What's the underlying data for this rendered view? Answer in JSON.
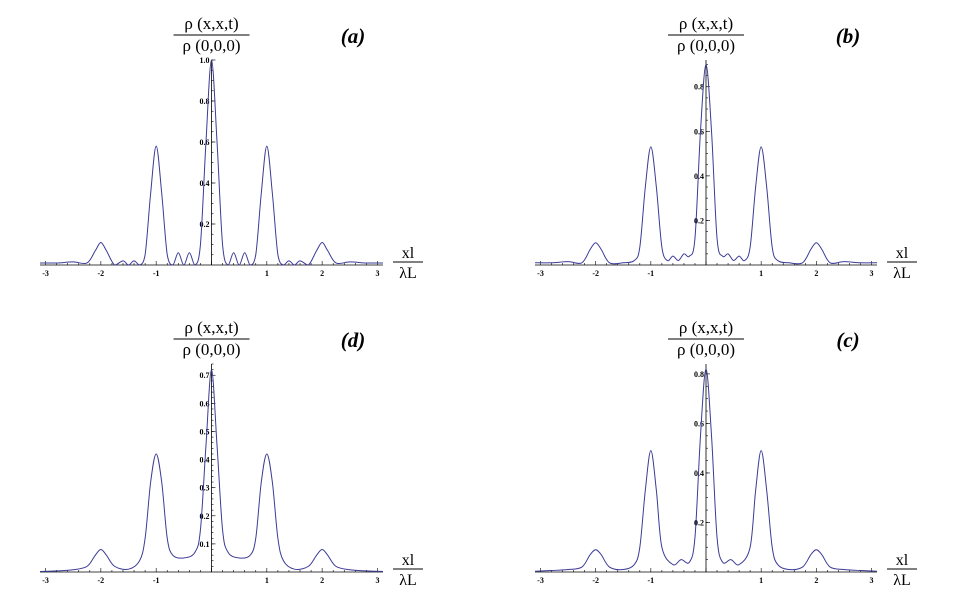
{
  "chart_data": [
    {
      "type": "line",
      "panel_label": "(a)",
      "ylabel_numerator": "ρ (x,x,t)",
      "ylabel_denominator": "ρ (0,0,0)",
      "xlabel_numerator": "xl",
      "xlabel_denominator": "λL",
      "xlim": [
        -3.1,
        3.1
      ],
      "ylim": [
        0,
        1.0
      ],
      "xticks": [
        "-3",
        "-2",
        "-1",
        "0",
        "1",
        "2",
        "3"
      ],
      "yticks": [
        "0.2",
        "0.4",
        "0.6",
        "0.8",
        "1.0"
      ],
      "series": [
        {
          "x": [
            -3.1,
            -2.8,
            -2.5,
            -2.25,
            -2.1,
            -2.0,
            -1.9,
            -1.75,
            -1.6,
            -1.5,
            -1.4,
            -1.3,
            -1.2,
            -1.1,
            -1.0,
            -0.9,
            -0.8,
            -0.7,
            -0.6,
            -0.5,
            -0.4,
            -0.3,
            -0.2,
            -0.1,
            0,
            0.1,
            0.2,
            0.3,
            0.4,
            0.5,
            0.6,
            0.7,
            0.8,
            0.9,
            1.0,
            1.1,
            1.2,
            1.3,
            1.4,
            1.5,
            1.6,
            1.75,
            1.9,
            2.0,
            2.1,
            2.25,
            2.5,
            2.8,
            3.1
          ],
          "y": [
            0.01,
            0.01,
            0.015,
            0.01,
            0.07,
            0.11,
            0.07,
            0.0,
            0.02,
            0.0,
            0.02,
            0.0,
            0.05,
            0.35,
            0.58,
            0.35,
            0.05,
            0.0,
            0.06,
            0.0,
            0.06,
            0.0,
            0.1,
            0.6,
            1.0,
            0.6,
            0.1,
            0.0,
            0.06,
            0.0,
            0.06,
            0.0,
            0.05,
            0.35,
            0.58,
            0.35,
            0.05,
            0.0,
            0.02,
            0.0,
            0.02,
            0.0,
            0.07,
            0.11,
            0.07,
            0.01,
            0.015,
            0.01,
            0.01
          ]
        }
      ]
    },
    {
      "type": "line",
      "panel_label": "(b)",
      "ylabel_numerator": "ρ (x,x,t)",
      "ylabel_denominator": "ρ (0,0,0)",
      "xlabel_numerator": "xl",
      "xlabel_denominator": "λL",
      "xlim": [
        -3.1,
        3.1
      ],
      "ylim": [
        0,
        0.92
      ],
      "xticks": [
        "-3",
        "-2",
        "-1",
        "0",
        "1",
        "2",
        "3"
      ],
      "yticks": [
        "0.2",
        "0.4",
        "0.6",
        "0.8"
      ],
      "series": [
        {
          "x": [
            -3.1,
            -2.8,
            -2.5,
            -2.25,
            -2.1,
            -2.0,
            -1.9,
            -1.75,
            -1.5,
            -1.3,
            -1.2,
            -1.1,
            -1.0,
            -0.9,
            -0.8,
            -0.7,
            -0.6,
            -0.5,
            -0.4,
            -0.3,
            -0.2,
            -0.1,
            0,
            0.1,
            0.2,
            0.3,
            0.4,
            0.5,
            0.6,
            0.7,
            0.8,
            0.9,
            1.0,
            1.1,
            1.2,
            1.3,
            1.5,
            1.75,
            1.9,
            2.0,
            2.1,
            2.25,
            2.5,
            2.8,
            3.1
          ],
          "y": [
            0.01,
            0.01,
            0.015,
            0.01,
            0.07,
            0.1,
            0.07,
            0.01,
            0.01,
            0.02,
            0.08,
            0.35,
            0.53,
            0.35,
            0.08,
            0.02,
            0.04,
            0.02,
            0.05,
            0.04,
            0.12,
            0.6,
            0.9,
            0.6,
            0.12,
            0.04,
            0.05,
            0.02,
            0.04,
            0.02,
            0.08,
            0.35,
            0.53,
            0.35,
            0.08,
            0.02,
            0.01,
            0.01,
            0.07,
            0.1,
            0.07,
            0.01,
            0.015,
            0.01,
            0.01
          ]
        }
      ]
    },
    {
      "type": "line",
      "panel_label": "(d)",
      "ylabel_numerator": "ρ (x,x,t)",
      "ylabel_denominator": "ρ (0,0,0)",
      "xlabel_numerator": "xl",
      "xlabel_denominator": "λL",
      "xlim": [
        -3.1,
        3.1
      ],
      "ylim": [
        0,
        0.74
      ],
      "xticks": [
        "-3",
        "-2",
        "-1",
        "0",
        "1",
        "2",
        "3"
      ],
      "yticks": [
        "0.1",
        "0.2",
        "0.3",
        "0.4",
        "0.5",
        "0.6",
        "0.7"
      ],
      "series": [
        {
          "x": [
            -3.1,
            -2.8,
            -2.5,
            -2.25,
            -2.1,
            -2.0,
            -1.9,
            -1.75,
            -1.5,
            -1.3,
            -1.2,
            -1.1,
            -1.0,
            -0.9,
            -0.8,
            -0.7,
            -0.5,
            -0.3,
            -0.2,
            -0.1,
            0,
            0.1,
            0.2,
            0.3,
            0.5,
            0.7,
            0.8,
            0.9,
            1.0,
            1.1,
            1.2,
            1.3,
            1.5,
            1.75,
            1.9,
            2.0,
            2.1,
            2.25,
            2.5,
            2.8,
            3.1
          ],
          "y": [
            0.002,
            0.004,
            0.008,
            0.02,
            0.06,
            0.08,
            0.06,
            0.02,
            0.01,
            0.04,
            0.12,
            0.32,
            0.42,
            0.32,
            0.12,
            0.06,
            0.05,
            0.07,
            0.15,
            0.45,
            0.72,
            0.45,
            0.15,
            0.07,
            0.05,
            0.06,
            0.12,
            0.32,
            0.42,
            0.32,
            0.12,
            0.04,
            0.01,
            0.02,
            0.06,
            0.08,
            0.06,
            0.02,
            0.008,
            0.004,
            0.002
          ]
        }
      ]
    },
    {
      "type": "line",
      "panel_label": "(c)",
      "ylabel_numerator": "ρ (x,x,t)",
      "ylabel_denominator": "ρ (0,0,0)",
      "xlabel_numerator": "xl",
      "xlabel_denominator": "λL",
      "xlim": [
        -3.1,
        3.1
      ],
      "ylim": [
        0,
        0.84
      ],
      "xticks": [
        "-3",
        "-2",
        "-1",
        "0",
        "1",
        "2",
        "3"
      ],
      "yticks": [
        "0.2",
        "0.4",
        "0.6",
        "0.8"
      ],
      "series": [
        {
          "x": [
            -3.1,
            -2.8,
            -2.5,
            -2.25,
            -2.1,
            -2.0,
            -1.9,
            -1.75,
            -1.5,
            -1.3,
            -1.2,
            -1.1,
            -1.0,
            -0.9,
            -0.8,
            -0.6,
            -0.45,
            -0.3,
            -0.2,
            -0.1,
            0,
            0.1,
            0.2,
            0.3,
            0.45,
            0.6,
            0.8,
            0.9,
            1.0,
            1.1,
            1.2,
            1.3,
            1.5,
            1.75,
            1.9,
            2.0,
            2.1,
            2.25,
            2.5,
            2.8,
            3.1
          ],
          "y": [
            0.003,
            0.006,
            0.01,
            0.02,
            0.07,
            0.09,
            0.07,
            0.02,
            0.01,
            0.03,
            0.1,
            0.33,
            0.49,
            0.33,
            0.1,
            0.03,
            0.05,
            0.04,
            0.14,
            0.55,
            0.82,
            0.55,
            0.14,
            0.04,
            0.05,
            0.03,
            0.1,
            0.33,
            0.49,
            0.33,
            0.1,
            0.03,
            0.01,
            0.02,
            0.07,
            0.09,
            0.07,
            0.02,
            0.01,
            0.006,
            0.003
          ]
        }
      ]
    }
  ]
}
